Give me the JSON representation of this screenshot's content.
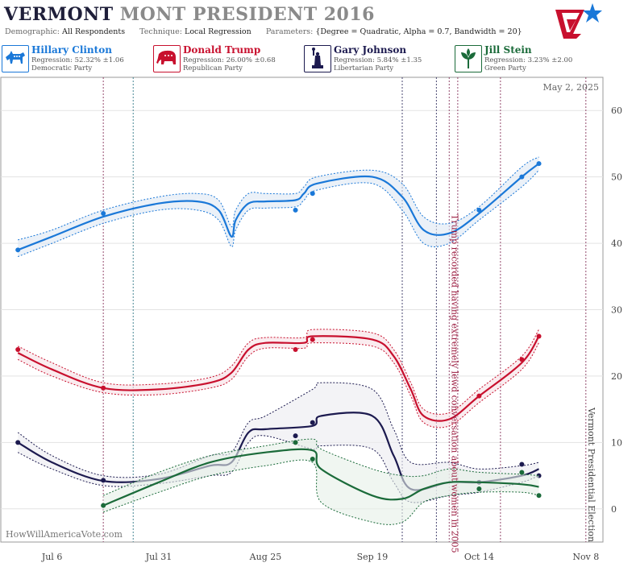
{
  "header": {
    "title_part1": "VERMONT",
    "title_part2": "MONT",
    "title_part3": "PRESIDENT 2016",
    "demographic_label": "Demographic:",
    "demographic_value": "All Respondents",
    "technique_label": "Technique:",
    "technique_value": "Local Regression",
    "parameters_label": "Parameters:",
    "parameters_value": "{Degree = Quadratic, Alpha = 0.7, Bandwidth = 20}"
  },
  "candidates": [
    {
      "name": "Hillary Clinton",
      "regression": "Regression: 52.32% ±1.06",
      "party": "Democratic Party",
      "color": "#1a78d8",
      "icon": "donkey-icon"
    },
    {
      "name": "Donald Trump",
      "regression": "Regression: 26.00% ±0.68",
      "party": "Republican Party",
      "color": "#c8102e",
      "icon": "elephant-icon"
    },
    {
      "name": "Gary Johnson",
      "regression": "Regression: 5.84% ±1.35",
      "party": "Libertarian Party",
      "color": "#1c1a4f",
      "icon": "statue-of-liberty-icon"
    },
    {
      "name": "Jill Stein",
      "regression": "Regression: 3.23% ±2.00",
      "party": "Green Party",
      "color": "#1b6b3a",
      "icon": "leaf-icon"
    }
  ],
  "chart_data": {
    "type": "line",
    "date_label": "May 2, 2025",
    "watermark": "HowWillAmericaVote.com",
    "x_ticks": [
      "Jul 6",
      "Jul 31",
      "Aug 25",
      "Sep 19",
      "Oct 14",
      "Nov 8"
    ],
    "y_ticks": [
      "0",
      "10",
      "20",
      "30",
      "40",
      "50",
      "60"
    ],
    "y_range": [
      -5,
      65
    ],
    "x_range": [
      "2016-06-24",
      "2016-11-12"
    ],
    "grid": true,
    "annotations": [
      {
        "text": "Trump recorded having extremely lewd conversation about women in 2005",
        "date": "2016-10-07",
        "color": "#9b1b3f"
      },
      {
        "text": "Vermont Presidential Election",
        "date": "2016-11-08",
        "color": "#444444"
      }
    ],
    "event_lines": [
      {
        "date": "2016-07-18",
        "color": "#7a1d4a"
      },
      {
        "date": "2016-07-25",
        "color": "#1a6a7a"
      },
      {
        "date": "2016-09-26",
        "color": "#1c1a4f"
      },
      {
        "date": "2016-10-04",
        "color": "#1c1a4f"
      },
      {
        "date": "2016-10-07",
        "color": "#7a1d4a"
      },
      {
        "date": "2016-10-09",
        "color": "#7a1d4a"
      },
      {
        "date": "2016-10-19",
        "color": "#7a1d4a"
      },
      {
        "date": "2016-11-08",
        "color": "#7a1d4a"
      }
    ],
    "series": [
      {
        "name": "Hillary Clinton",
        "color": "#1a78d8",
        "band": "#dde7f3",
        "line": [
          [
            "2016-06-28",
            39
          ],
          [
            "2016-07-06",
            41
          ],
          [
            "2016-07-18",
            44
          ],
          [
            "2016-07-31",
            46
          ],
          [
            "2016-08-09",
            46.3
          ],
          [
            "2016-08-14",
            45
          ],
          [
            "2016-08-17",
            41
          ],
          [
            "2016-08-18",
            43.5
          ],
          [
            "2016-08-21",
            46
          ],
          [
            "2016-08-25",
            46.3
          ],
          [
            "2016-09-01",
            46.5
          ],
          [
            "2016-09-03",
            47.5
          ],
          [
            "2016-09-06",
            49
          ],
          [
            "2016-09-19",
            50
          ],
          [
            "2016-09-26",
            47
          ],
          [
            "2016-10-01",
            42
          ],
          [
            "2016-10-07",
            41.5
          ],
          [
            "2016-10-14",
            44.5
          ],
          [
            "2016-10-24",
            50
          ],
          [
            "2016-10-28",
            52
          ]
        ],
        "upper": [
          [
            "2016-06-28",
            40.5
          ],
          [
            "2016-07-06",
            42
          ],
          [
            "2016-07-18",
            45
          ],
          [
            "2016-07-31",
            47
          ],
          [
            "2016-08-09",
            47.5
          ],
          [
            "2016-08-14",
            46.5
          ],
          [
            "2016-08-17",
            42.5
          ],
          [
            "2016-08-18",
            45
          ],
          [
            "2016-08-21",
            47.5
          ],
          [
            "2016-08-25",
            47.5
          ],
          [
            "2016-09-01",
            47.5
          ],
          [
            "2016-09-03",
            48.5
          ],
          [
            "2016-09-06",
            50
          ],
          [
            "2016-09-19",
            51
          ],
          [
            "2016-09-26",
            49
          ],
          [
            "2016-10-01",
            44
          ],
          [
            "2016-10-07",
            43
          ],
          [
            "2016-10-14",
            45.5
          ],
          [
            "2016-10-24",
            51.5
          ],
          [
            "2016-10-28",
            53
          ]
        ],
        "lower": [
          [
            "2016-06-28",
            38
          ],
          [
            "2016-07-06",
            40
          ],
          [
            "2016-07-18",
            43
          ],
          [
            "2016-07-31",
            45
          ],
          [
            "2016-08-09",
            45
          ],
          [
            "2016-08-14",
            43.5
          ],
          [
            "2016-08-17",
            39.5
          ],
          [
            "2016-08-18",
            42
          ],
          [
            "2016-08-21",
            45
          ],
          [
            "2016-08-25",
            45.3
          ],
          [
            "2016-09-01",
            45.5
          ],
          [
            "2016-09-03",
            46.5
          ],
          [
            "2016-09-06",
            48
          ],
          [
            "2016-09-19",
            49
          ],
          [
            "2016-09-26",
            45
          ],
          [
            "2016-10-01",
            40
          ],
          [
            "2016-10-07",
            40
          ],
          [
            "2016-10-14",
            43.5
          ],
          [
            "2016-10-24",
            48.5
          ],
          [
            "2016-10-28",
            51
          ]
        ],
        "points": [
          [
            "2016-06-28",
            39
          ],
          [
            "2016-07-18",
            44.5
          ],
          [
            "2016-09-01",
            45
          ],
          [
            "2016-09-05",
            47.5
          ],
          [
            "2016-10-14",
            45
          ],
          [
            "2016-10-24",
            50
          ],
          [
            "2016-10-28",
            52
          ]
        ]
      },
      {
        "name": "Donald Trump",
        "color": "#c8102e",
        "band": "#f6dfe4",
        "line": [
          [
            "2016-06-28",
            23.5
          ],
          [
            "2016-07-06",
            21
          ],
          [
            "2016-07-18",
            18.2
          ],
          [
            "2016-07-31",
            18
          ],
          [
            "2016-08-12",
            19
          ],
          [
            "2016-08-17",
            20.5
          ],
          [
            "2016-08-21",
            24
          ],
          [
            "2016-08-25",
            25
          ],
          [
            "2016-09-03",
            25
          ],
          [
            "2016-09-05",
            26
          ],
          [
            "2016-09-19",
            25.5
          ],
          [
            "2016-09-24",
            23
          ],
          [
            "2016-09-28",
            18
          ],
          [
            "2016-10-01",
            14
          ],
          [
            "2016-10-07",
            13.5
          ],
          [
            "2016-10-14",
            17
          ],
          [
            "2016-10-24",
            22
          ],
          [
            "2016-10-28",
            26
          ]
        ],
        "upper": [
          [
            "2016-06-28",
            24.5
          ],
          [
            "2016-07-06",
            22
          ],
          [
            "2016-07-18",
            19
          ],
          [
            "2016-07-31",
            18.8
          ],
          [
            "2016-08-12",
            19.8
          ],
          [
            "2016-08-17",
            21.5
          ],
          [
            "2016-08-21",
            25
          ],
          [
            "2016-08-25",
            25.8
          ],
          [
            "2016-09-03",
            25.8
          ],
          [
            "2016-09-05",
            27
          ],
          [
            "2016-09-19",
            26.5
          ],
          [
            "2016-09-24",
            24
          ],
          [
            "2016-09-28",
            19
          ],
          [
            "2016-10-01",
            15
          ],
          [
            "2016-10-07",
            14.5
          ],
          [
            "2016-10-14",
            18
          ],
          [
            "2016-10-24",
            23
          ],
          [
            "2016-10-28",
            27
          ]
        ],
        "lower": [
          [
            "2016-06-28",
            22.5
          ],
          [
            "2016-07-06",
            20
          ],
          [
            "2016-07-18",
            17.5
          ],
          [
            "2016-07-31",
            17.2
          ],
          [
            "2016-08-12",
            18.2
          ],
          [
            "2016-08-17",
            19.5
          ],
          [
            "2016-08-21",
            23
          ],
          [
            "2016-08-25",
            24.2
          ],
          [
            "2016-09-03",
            24.2
          ],
          [
            "2016-09-05",
            25
          ],
          [
            "2016-09-19",
            24.5
          ],
          [
            "2016-09-24",
            22
          ],
          [
            "2016-09-28",
            17
          ],
          [
            "2016-10-01",
            13
          ],
          [
            "2016-10-07",
            12.5
          ],
          [
            "2016-10-14",
            16
          ],
          [
            "2016-10-24",
            21
          ],
          [
            "2016-10-28",
            25
          ]
        ],
        "points": [
          [
            "2016-06-28",
            24
          ],
          [
            "2016-07-18",
            18.2
          ],
          [
            "2016-09-01",
            24
          ],
          [
            "2016-09-05",
            25.5
          ],
          [
            "2016-10-14",
            17
          ],
          [
            "2016-10-24",
            22.5
          ],
          [
            "2016-10-28",
            26
          ]
        ]
      },
      {
        "name": "Gary Johnson",
        "color": "#1c1a4f",
        "band": "#ebebf0",
        "line": [
          [
            "2016-06-28",
            10
          ],
          [
            "2016-07-06",
            7
          ],
          [
            "2016-07-18",
            4.2
          ],
          [
            "2016-07-31",
            4.5
          ],
          [
            "2016-08-12",
            6.5
          ],
          [
            "2016-08-17",
            7
          ],
          [
            "2016-08-21",
            11.5
          ],
          [
            "2016-08-25",
            12
          ],
          [
            "2016-09-05",
            12.5
          ],
          [
            "2016-09-07",
            14
          ],
          [
            "2016-09-19",
            14
          ],
          [
            "2016-09-24",
            8
          ],
          [
            "2016-09-28",
            3
          ],
          [
            "2016-10-07",
            4
          ],
          [
            "2016-10-14",
            4
          ],
          [
            "2016-10-24",
            5
          ],
          [
            "2016-10-28",
            6
          ]
        ],
        "upper": [
          [
            "2016-06-28",
            11.5
          ],
          [
            "2016-07-06",
            8
          ],
          [
            "2016-07-18",
            5
          ],
          [
            "2016-07-31",
            5.2
          ],
          [
            "2016-08-12",
            8
          ],
          [
            "2016-08-17",
            8.5
          ],
          [
            "2016-08-21",
            13
          ],
          [
            "2016-08-25",
            14
          ],
          [
            "2016-09-05",
            18
          ],
          [
            "2016-09-07",
            19
          ],
          [
            "2016-09-19",
            18
          ],
          [
            "2016-09-24",
            12
          ],
          [
            "2016-09-28",
            7
          ],
          [
            "2016-10-07",
            7
          ],
          [
            "2016-10-14",
            6
          ],
          [
            "2016-10-24",
            6.5
          ],
          [
            "2016-10-28",
            7
          ]
        ],
        "lower": [
          [
            "2016-06-28",
            8.5
          ],
          [
            "2016-07-06",
            6
          ],
          [
            "2016-07-18",
            3.5
          ],
          [
            "2016-07-31",
            3.8
          ],
          [
            "2016-08-12",
            5
          ],
          [
            "2016-08-17",
            5.5
          ],
          [
            "2016-08-21",
            10
          ],
          [
            "2016-08-25",
            11
          ],
          [
            "2016-09-05",
            9
          ],
          [
            "2016-09-07",
            9.5
          ],
          [
            "2016-09-19",
            9
          ],
          [
            "2016-09-24",
            4
          ],
          [
            "2016-09-28",
            1
          ],
          [
            "2016-10-07",
            2
          ],
          [
            "2016-10-14",
            2.5
          ],
          [
            "2016-10-24",
            4
          ],
          [
            "2016-10-28",
            5
          ]
        ],
        "points": [
          [
            "2016-06-28",
            10
          ],
          [
            "2016-07-18",
            4.3
          ],
          [
            "2016-09-01",
            11
          ],
          [
            "2016-09-05",
            13
          ],
          [
            "2016-10-14",
            4
          ],
          [
            "2016-10-24",
            6.7
          ],
          [
            "2016-10-28",
            5
          ]
        ]
      },
      {
        "name": "Jill Stein",
        "color": "#1b6b3a",
        "band": "#e6f0e8",
        "line": [
          [
            "2016-07-18",
            0.5
          ],
          [
            "2016-07-31",
            4
          ],
          [
            "2016-08-12",
            7
          ],
          [
            "2016-08-25",
            8.5
          ],
          [
            "2016-09-05",
            8.8
          ],
          [
            "2016-09-07",
            6
          ],
          [
            "2016-09-19",
            2
          ],
          [
            "2016-09-26",
            1.5
          ],
          [
            "2016-10-01",
            3
          ],
          [
            "2016-10-07",
            4
          ],
          [
            "2016-10-14",
            4
          ],
          [
            "2016-10-24",
            3.7
          ],
          [
            "2016-10-28",
            3.3
          ]
        ],
        "upper": [
          [
            "2016-07-18",
            2
          ],
          [
            "2016-07-31",
            5.5
          ],
          [
            "2016-08-12",
            8
          ],
          [
            "2016-08-25",
            9.5
          ],
          [
            "2016-09-05",
            10.5
          ],
          [
            "2016-09-07",
            9
          ],
          [
            "2016-09-19",
            6
          ],
          [
            "2016-09-26",
            5
          ],
          [
            "2016-10-01",
            5
          ],
          [
            "2016-10-07",
            6
          ],
          [
            "2016-10-14",
            5.5
          ],
          [
            "2016-10-24",
            5.2
          ],
          [
            "2016-10-28",
            5
          ]
        ],
        "lower": [
          [
            "2016-07-18",
            -0.5
          ],
          [
            "2016-07-31",
            2.5
          ],
          [
            "2016-08-12",
            5
          ],
          [
            "2016-08-25",
            6.5
          ],
          [
            "2016-09-05",
            7
          ],
          [
            "2016-09-07",
            1
          ],
          [
            "2016-09-19",
            -2
          ],
          [
            "2016-09-26",
            -2
          ],
          [
            "2016-10-01",
            1
          ],
          [
            "2016-10-07",
            2
          ],
          [
            "2016-10-14",
            2.5
          ],
          [
            "2016-10-24",
            2.5
          ],
          [
            "2016-10-28",
            2
          ]
        ],
        "points": [
          [
            "2016-07-18",
            0.5
          ],
          [
            "2016-09-01",
            10
          ],
          [
            "2016-09-05",
            7.5
          ],
          [
            "2016-10-14",
            3
          ],
          [
            "2016-10-24",
            5.5
          ],
          [
            "2016-10-28",
            2
          ]
        ]
      }
    ]
  }
}
